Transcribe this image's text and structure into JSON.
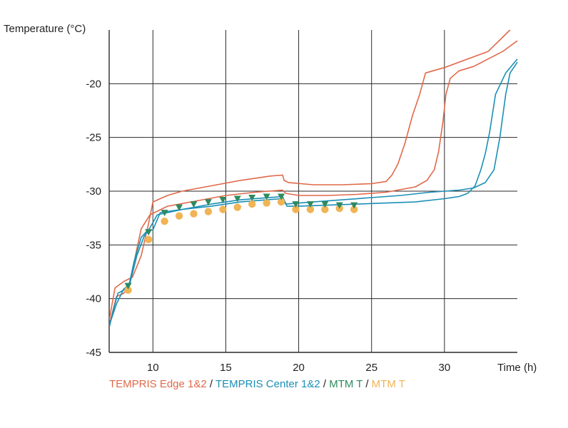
{
  "chart_data": {
    "type": "line",
    "ylabel": "Temperature (°C)",
    "xlabel": "Time (h)",
    "xlim": [
      7,
      35
    ],
    "ylim": [
      -45,
      -15
    ],
    "xticks": [
      10,
      15,
      20,
      25,
      30
    ],
    "yticks": [
      -45,
      -40,
      -35,
      -30,
      -25,
      -20
    ],
    "grid": true,
    "legend_position": "bottom",
    "legend": [
      {
        "label": "TEMPRIS Edge 1&2",
        "color": "#e0694a"
      },
      {
        "label": "TEMPRIS Center 1&2",
        "color": "#1b8fb5"
      },
      {
        "label": "MTM T",
        "color": "#2e8a5e"
      },
      {
        "label": "MTM T",
        "color": "#f0b455"
      }
    ],
    "separator": " / ",
    "series": [
      {
        "name": "TEMPRIS Edge 1&2",
        "marker": "line",
        "color": "#e0694a",
        "x": [
          7,
          7.4,
          8,
          8.6,
          9.2,
          9.7,
          10,
          11,
          12,
          14,
          16,
          18,
          18.9,
          19,
          19.3,
          21,
          23,
          25,
          26,
          26.4,
          26.8,
          27.3,
          27.8,
          28.3,
          28.7,
          30,
          33,
          34.5
        ],
        "y": [
          -42,
          -39,
          -38.4,
          -38,
          -36,
          -33,
          -31,
          -30.4,
          -30,
          -29.5,
          -29,
          -28.6,
          -28.5,
          -29,
          -29.2,
          -29.4,
          -29.4,
          -29.3,
          -29.1,
          -28.5,
          -27.5,
          -25.5,
          -23,
          -21,
          -19,
          -18.5,
          -17,
          -15
        ]
      },
      {
        "name": "TEMPRIS Edge 1&2",
        "marker": "line",
        "color": "#e0694a",
        "x": [
          7,
          7.5,
          8,
          8.4,
          8.8,
          9.2,
          9.8,
          11,
          13,
          15,
          17,
          18.9,
          19.1,
          20,
          22,
          24,
          26,
          28,
          28.8,
          29.3,
          29.6,
          29.9,
          30.1,
          30.4,
          31,
          32,
          34,
          35
        ],
        "y": [
          -42.5,
          -39.8,
          -39.5,
          -38.8,
          -36,
          -33.5,
          -32.2,
          -31.4,
          -30.9,
          -30.4,
          -30.1,
          -29.9,
          -30.2,
          -30.4,
          -30.4,
          -30.3,
          -30.1,
          -29.6,
          -29,
          -28,
          -26.3,
          -23.5,
          -21,
          -19.5,
          -18.8,
          -18.4,
          -17,
          -16
        ]
      },
      {
        "name": "TEMPRIS Center 1&2",
        "marker": "line",
        "color": "#1b8fb5",
        "x": [
          7,
          7.3,
          7.6,
          8,
          8.4,
          8.7,
          9.2,
          9.6,
          10,
          10.5,
          12,
          14,
          16,
          18.8,
          19,
          19.2,
          20,
          22,
          24,
          26,
          28,
          30,
          31,
          31.6,
          32.1,
          32.5,
          32.8,
          33.1,
          33.5,
          34.2,
          35
        ],
        "y": [
          -42.7,
          -41,
          -39.5,
          -39.2,
          -38.5,
          -36.6,
          -34.3,
          -33.7,
          -33.6,
          -32,
          -31.7,
          -31.4,
          -31,
          -30.7,
          -30.8,
          -31.4,
          -31.4,
          -31.3,
          -31.2,
          -31.1,
          -31,
          -30.7,
          -30.5,
          -30.2,
          -29.5,
          -28,
          -26.5,
          -24.5,
          -21,
          -19,
          -17.7
        ]
      },
      {
        "name": "TEMPRIS Center 1&2",
        "marker": "line",
        "color": "#1b8fb5",
        "x": [
          7,
          7.5,
          8,
          8.4,
          8.9,
          9.4,
          9.8,
          10.3,
          12,
          14,
          16,
          18.9,
          19.1,
          21,
          23,
          25,
          27,
          29,
          31,
          32,
          32.8,
          33.4,
          33.8,
          34.2,
          34.5,
          35
        ],
        "y": [
          -42.5,
          -40.5,
          -39.1,
          -38.7,
          -36,
          -34.2,
          -33.4,
          -32.2,
          -31.7,
          -31.2,
          -30.8,
          -30.5,
          -31.2,
          -31,
          -30.8,
          -30.6,
          -30.4,
          -30.1,
          -29.9,
          -29.7,
          -29.2,
          -28,
          -25,
          -21,
          -19,
          -18
        ]
      },
      {
        "name": "MTM T",
        "marker": "triangle",
        "color": "#2e8a5e",
        "x": [
          8.3,
          9.7,
          10.8,
          11.8,
          12.8,
          13.8,
          14.8,
          15.8,
          16.8,
          17.8,
          18.8,
          19.8,
          20.8,
          21.8,
          22.8,
          23.8
        ],
        "y": [
          -38.8,
          -33.8,
          -32,
          -31.5,
          -31.2,
          -31,
          -30.8,
          -30.7,
          -30.6,
          -30.5,
          -30.5,
          -31.2,
          -31.2,
          -31.2,
          -31.3,
          -31.3
        ]
      },
      {
        "name": "MTM T",
        "marker": "circle",
        "color": "#f0b455",
        "x": [
          8.3,
          9.7,
          10.8,
          11.8,
          12.8,
          13.8,
          14.8,
          15.8,
          16.8,
          17.8,
          18.8,
          19.8,
          20.8,
          21.8,
          22.8,
          23.8
        ],
        "y": [
          -39.2,
          -34.5,
          -32.8,
          -32.3,
          -32.1,
          -31.9,
          -31.7,
          -31.5,
          -31.2,
          -31.1,
          -31,
          -31.7,
          -31.7,
          -31.7,
          -31.6,
          -31.7
        ]
      }
    ]
  },
  "colors": {
    "grid": "#2a2a2a",
    "axis_text": "#222222",
    "separator": "#222222"
  }
}
